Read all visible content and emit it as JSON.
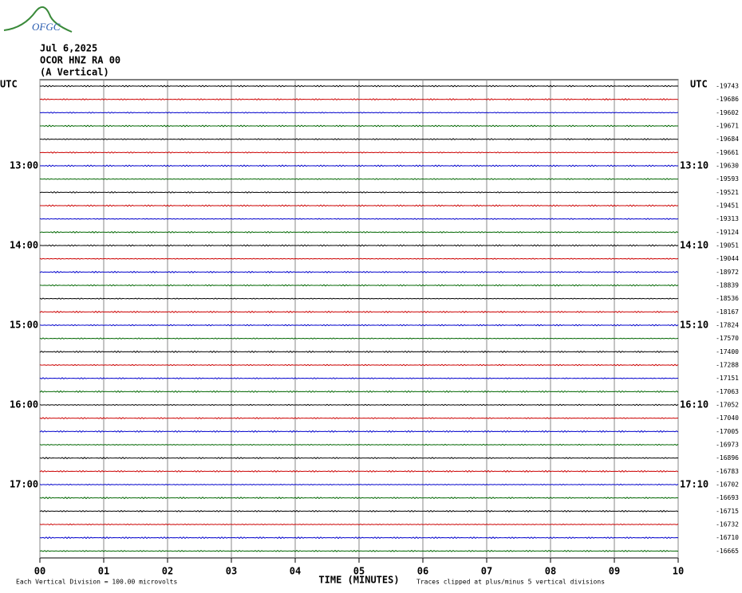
{
  "chart_data": {
    "type": "helicorder",
    "logo_text": "OFGC",
    "title_lines": [
      "Jul 6,2025",
      "OCOR HNZ RA 00",
      "(A Vertical)"
    ],
    "left_header": "UTC",
    "right_header": "UTC",
    "left_labels": [
      null,
      null,
      null,
      null,
      null,
      null,
      "13:00",
      null,
      null,
      null,
      null,
      null,
      "14:00",
      null,
      null,
      null,
      null,
      null,
      "15:00",
      null,
      null,
      null,
      null,
      null,
      "16:00",
      null,
      null,
      null,
      null,
      null,
      "17:00",
      null,
      null,
      null,
      null,
      null
    ],
    "right_labels": [
      null,
      null,
      null,
      null,
      null,
      null,
      "13:10",
      null,
      null,
      null,
      null,
      null,
      "14:10",
      null,
      null,
      null,
      null,
      null,
      "15:10",
      null,
      null,
      null,
      null,
      null,
      "16:10",
      null,
      null,
      null,
      null,
      null,
      "17:10",
      null,
      null,
      null,
      null,
      null
    ],
    "offsets": [
      -19743,
      -19686,
      -19602,
      -19671,
      -19684,
      -19661,
      -19630,
      -19593,
      -19521,
      -19451,
      -19313,
      -19124,
      -19051,
      -19044,
      -18972,
      -18839,
      -18536,
      -18167,
      -17824,
      -17570,
      -17400,
      -17288,
      -17151,
      -17063,
      -17052,
      -17040,
      -17005,
      -16973,
      -16896,
      -16783,
      -16702,
      -16693,
      -16715,
      -16732,
      -16710,
      -16665
    ],
    "trace_colors": [
      "#000000",
      "#cc0000",
      "#0000cc",
      "#006600"
    ],
    "xlim": [
      0,
      10
    ],
    "xticks": [
      {
        "value": 0,
        "label": "00"
      },
      {
        "value": 1,
        "label": "01"
      },
      {
        "value": 2,
        "label": "02"
      },
      {
        "value": 3,
        "label": "03"
      },
      {
        "value": 4,
        "label": "04"
      },
      {
        "value": 5,
        "label": "05"
      },
      {
        "value": 6,
        "label": "06"
      },
      {
        "value": 7,
        "label": "07"
      },
      {
        "value": 8,
        "label": "08"
      },
      {
        "value": 9,
        "label": "09"
      },
      {
        "value": 10,
        "label": "10"
      }
    ],
    "xlabel": "TIME (MINUTES)",
    "footer_left": "Each Vertical Division =  100.00 microvolts",
    "footer_right": "Traces clipped at plus/minus 5 vertical divisions",
    "grid": true
  }
}
